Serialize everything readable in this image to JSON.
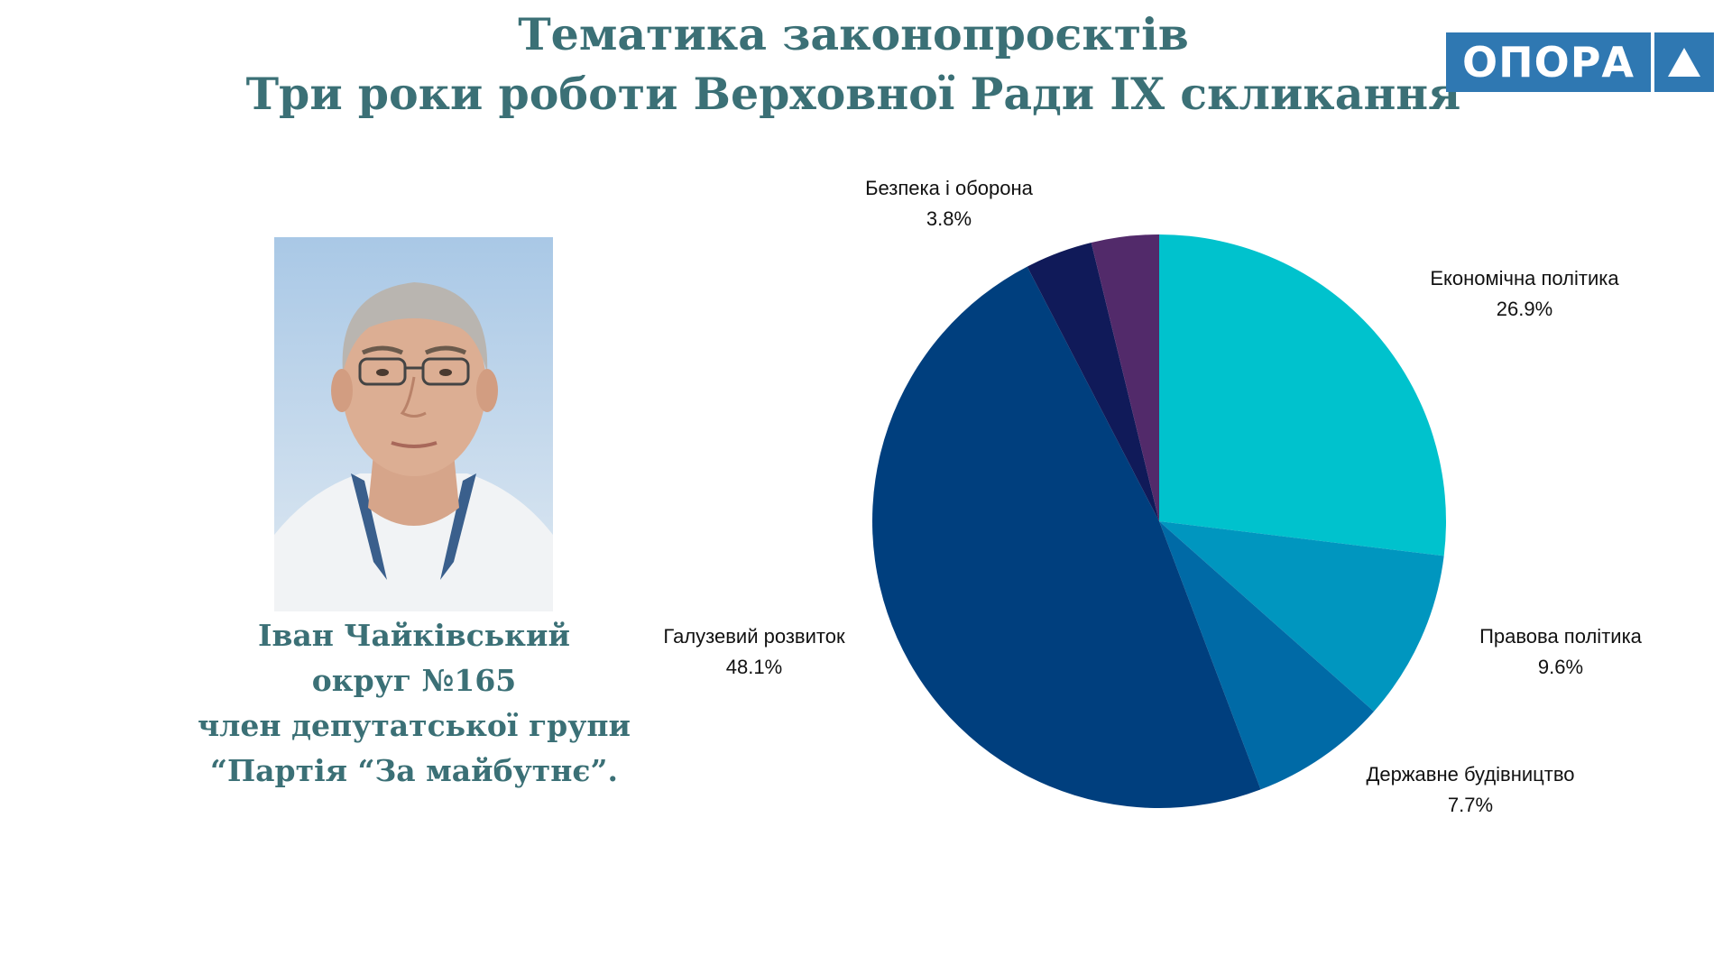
{
  "header": {
    "title_line_1": "Тематика законопроєктів",
    "title_line_2": "Три роки роботи Верховної Ради IX скликання"
  },
  "logo": {
    "text": "ОПОРА",
    "icon": "triangle-icon",
    "color": "#2f78b2"
  },
  "person": {
    "name": "Іван Чайківський",
    "district": "округ №165",
    "role": "член депутатської групи",
    "group": "“Партія “За майбутнє”."
  },
  "chart_data": {
    "type": "pie",
    "start_angle_deg": 0,
    "direction": "clockwise",
    "slices": [
      {
        "label": "Економічна політика",
        "value": 26.9,
        "value_label": "26.9%",
        "color": "#00c2cd"
      },
      {
        "label": "Правова політика",
        "value": 9.6,
        "value_label": "9.6%",
        "color": "#0096bf"
      },
      {
        "label": "Державне будівництво",
        "value": 7.7,
        "value_label": "7.7%",
        "color": "#006aa6"
      },
      {
        "label": "Галузевий розвиток",
        "value": 48.1,
        "value_label": "48.1%",
        "color": "#003f7e"
      },
      {
        "label": "",
        "value": 3.8,
        "value_label": "",
        "color": "#101a59"
      },
      {
        "label": "Безпека і оборона",
        "value": 3.8,
        "value_label": "3.8%",
        "color": "#522a6a"
      }
    ]
  }
}
